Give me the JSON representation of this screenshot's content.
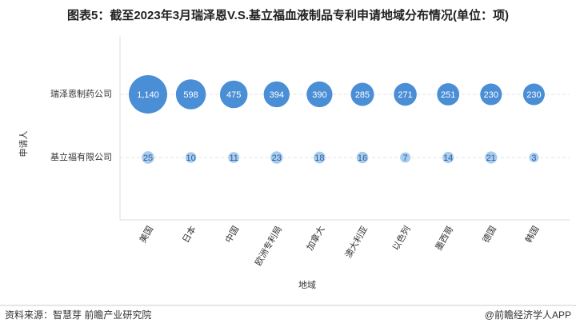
{
  "chart_data": {
    "type": "bubble",
    "title": "图表5：截至2023年3月瑞泽恩V.S.基立福血液制品专利申请地域分布情况(单位：项)",
    "x_label": "地域",
    "y_label": "申请人",
    "categories": [
      "美国",
      "日本",
      "中国",
      "欧洲专利局",
      "加拿大",
      "澳大利亚",
      "以色列",
      "墨西哥",
      "德国",
      "韩国"
    ],
    "series": [
      {
        "name": "瑞泽恩制药公司",
        "color": "#4a8ed6",
        "values": [
          1140,
          598,
          475,
          394,
          390,
          285,
          271,
          251,
          230,
          230
        ],
        "value_labels": [
          "1,140",
          "598",
          "475",
          "394",
          "390",
          "285",
          "271",
          "251",
          "230",
          "230"
        ]
      },
      {
        "name": "基立福有限公司",
        "color": "#a8ccef",
        "values": [
          25,
          10,
          11,
          23,
          18,
          16,
          7,
          14,
          21,
          3
        ]
      }
    ],
    "grid": true,
    "source": "资料来源：智慧芽 前瞻产业研究院",
    "credit": "@前瞻经济学人APP"
  }
}
